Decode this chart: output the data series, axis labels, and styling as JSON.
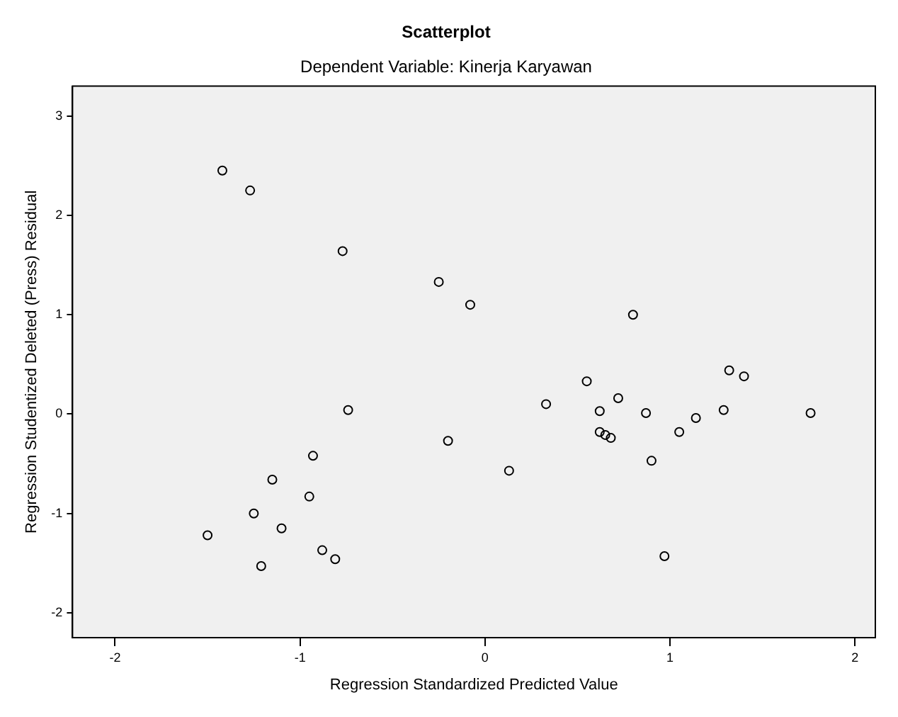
{
  "chart_data": {
    "type": "scatter",
    "title": "Scatterplot",
    "subtitle": "Dependent Variable: Kinerja Karyawan",
    "xlabel": "Regression Standardized Predicted Value",
    "ylabel": "Regression Studentized Deleted (Press) Residual",
    "xlim": [
      -2.23,
      2.11
    ],
    "ylim": [
      -2.25,
      3.3
    ],
    "xticks": [
      -2,
      -1,
      0,
      1,
      2
    ],
    "yticks": [
      -2,
      -1,
      0,
      1,
      2,
      3
    ],
    "grid": false,
    "legend": false,
    "marker": "circle",
    "series": [
      {
        "color": "#000000",
        "x": [
          -1.42,
          -1.27,
          -0.77,
          -0.25,
          -0.08,
          0.8,
          1.32,
          1.4,
          0.55,
          0.72,
          0.33,
          -0.74,
          0.62,
          0.87,
          1.29,
          1.76,
          1.14,
          1.05,
          0.62,
          0.65,
          0.68,
          -0.2,
          0.9,
          -0.93,
          0.13,
          -1.15,
          -0.95,
          -1.25,
          -1.1,
          -1.5,
          0.97,
          -0.88,
          -0.81,
          -1.21
        ],
        "values": [
          2.45,
          2.25,
          1.64,
          1.33,
          1.1,
          1.0,
          0.44,
          0.38,
          0.33,
          0.16,
          0.1,
          0.04,
          0.03,
          0.01,
          0.04,
          0.01,
          -0.04,
          -0.18,
          -0.18,
          -0.21,
          -0.24,
          -0.27,
          -0.47,
          -0.42,
          -0.57,
          -0.66,
          -0.83,
          -1.0,
          -1.15,
          -1.22,
          -1.43,
          -1.37,
          -1.46,
          -1.53
        ]
      }
    ]
  }
}
